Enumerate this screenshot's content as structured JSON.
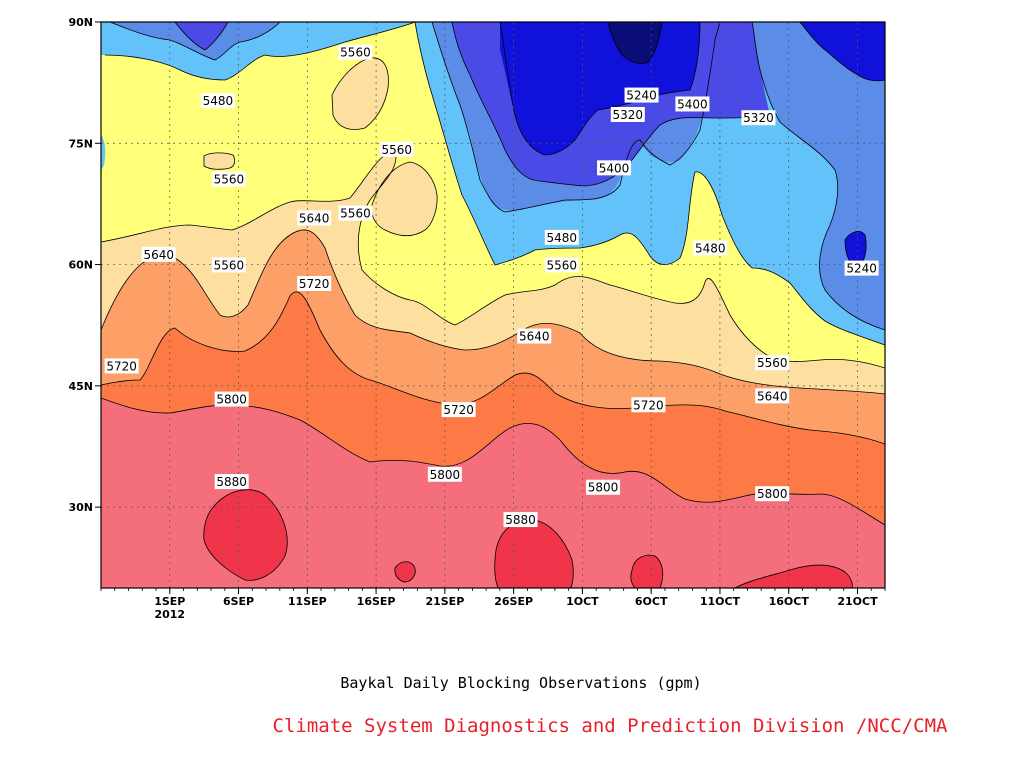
{
  "chart_data": {
    "type": "heatmap",
    "title": "",
    "subtitle": "Baykal Daily Blocking Observations (gpm)",
    "credit": "Climate System Diagnostics and Prediction Division /NCC/CMA",
    "xlabel": "",
    "ylabel": "",
    "x_ticks": [
      "1SEP",
      "6SEP",
      "11SEP",
      "16SEP",
      "21SEP",
      "26SEP",
      "1OCT",
      "6OCT",
      "11OCT",
      "16OCT",
      "21OCT"
    ],
    "x_year_label": "2012",
    "y_ticks": [
      "30N",
      "45N",
      "60N",
      "75N",
      "90N"
    ],
    "ylim_deg": [
      20,
      90
    ],
    "xlim_day": [
      -5,
      52
    ],
    "contour_levels": [
      5240,
      5320,
      5400,
      5480,
      5560,
      5640,
      5720,
      5800,
      5880
    ],
    "contour_colors": {
      "below_5240": "#0a0c78",
      "5160_5240": "#1111dc",
      "5240_5320": "#4a4ae6",
      "5320_5400": "#5a8ce8",
      "5400_5480": "#64c2fa",
      "5480_5560": "#ffff7a",
      "5560_5640": "#fde0a0",
      "5640_5720": "#fca068",
      "5720_5800": "#fd7a46",
      "5800_5880": "#f46e7c",
      "above_5880": "#f0344a"
    },
    "contour_labels": [
      {
        "text": "5560",
        "day": 13.5,
        "lat": 86.2
      },
      {
        "text": "5480",
        "day": 3.5,
        "lat": 80.2
      },
      {
        "text": "5240",
        "day": 34.3,
        "lat": 80.9
      },
      {
        "text": "5320",
        "day": 33.3,
        "lat": 78.5
      },
      {
        "text": "5400",
        "day": 38.0,
        "lat": 79.8
      },
      {
        "text": "5320",
        "day": 42.8,
        "lat": 78.1
      },
      {
        "text": "5560",
        "day": 16.5,
        "lat": 74.2
      },
      {
        "text": "5560",
        "day": 4.3,
        "lat": 70.5
      },
      {
        "text": "5400",
        "day": 32.3,
        "lat": 71.9
      },
      {
        "text": "5640",
        "day": 10.5,
        "lat": 65.7
      },
      {
        "text": "5560",
        "day": 13.5,
        "lat": 66.3
      },
      {
        "text": "5640",
        "day": -0.8,
        "lat": 61.2
      },
      {
        "text": "5560",
        "day": 4.3,
        "lat": 59.9
      },
      {
        "text": "5480",
        "day": 28.5,
        "lat": 63.3
      },
      {
        "text": "5480",
        "day": 39.3,
        "lat": 62.0
      },
      {
        "text": "5560",
        "day": 28.5,
        "lat": 59.9
      },
      {
        "text": "5240",
        "day": 50.3,
        "lat": 59.5
      },
      {
        "text": "5720",
        "day": 10.5,
        "lat": 57.6
      },
      {
        "text": "5640",
        "day": 26.5,
        "lat": 51.1
      },
      {
        "text": "5720",
        "day": -3.5,
        "lat": 47.4
      },
      {
        "text": "5560",
        "day": 43.8,
        "lat": 47.8
      },
      {
        "text": "5800",
        "day": 4.5,
        "lat": 43.3
      },
      {
        "text": "5720",
        "day": 21.0,
        "lat": 42.0
      },
      {
        "text": "5720",
        "day": 34.8,
        "lat": 42.6
      },
      {
        "text": "5640",
        "day": 43.8,
        "lat": 43.7
      },
      {
        "text": "5800",
        "day": 20.0,
        "lat": 34.0
      },
      {
        "text": "5800",
        "day": 31.5,
        "lat": 32.4
      },
      {
        "text": "5800",
        "day": 43.8,
        "lat": 31.6
      },
      {
        "text": "5880",
        "day": 4.5,
        "lat": 33.1
      },
      {
        "text": "5880",
        "day": 25.5,
        "lat": 28.4
      }
    ]
  }
}
